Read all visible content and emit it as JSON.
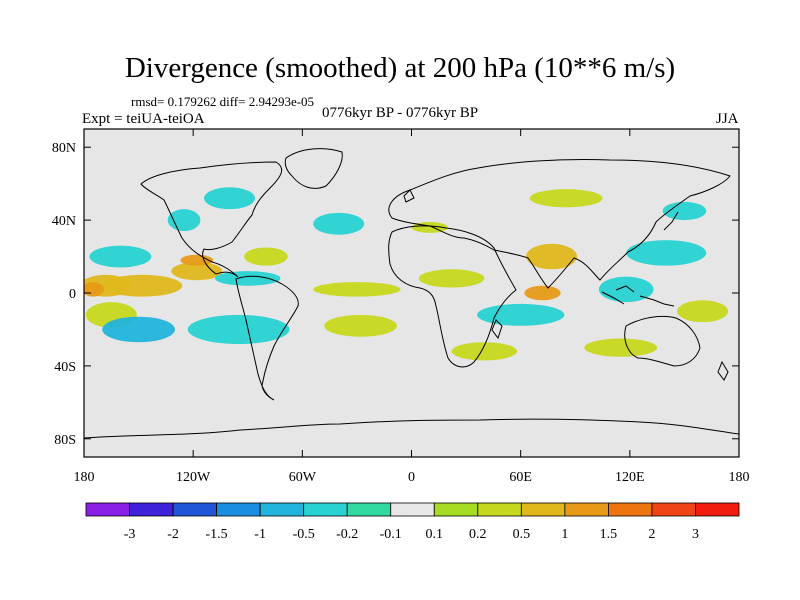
{
  "chart_data": {
    "type": "heatmap",
    "title": "Divergence (smoothed) at 200 hPa (10**6 m/s)",
    "stats": "rmsd= 0.179262  diff= 2.94293e-05",
    "experiment": "Expt = teiUA-teiOA",
    "period": "0776kyr BP - 0776kyr BP",
    "season": "JJA",
    "x_range": [
      -180,
      180
    ],
    "y_range": [
      -90,
      90
    ],
    "x_ticks": [
      {
        "value": -180,
        "label": "180"
      },
      {
        "value": -120,
        "label": "120W"
      },
      {
        "value": -60,
        "label": "60W"
      },
      {
        "value": 0,
        "label": "0"
      },
      {
        "value": 60,
        "label": "60E"
      },
      {
        "value": 120,
        "label": "120E"
      },
      {
        "value": 180,
        "label": "180"
      }
    ],
    "y_ticks": [
      {
        "value": 80,
        "label": "80N"
      },
      {
        "value": 40,
        "label": "40N"
      },
      {
        "value": 0,
        "label": "0"
      },
      {
        "value": -40,
        "label": "40S"
      },
      {
        "value": -80,
        "label": "80S"
      }
    ],
    "colorbar": {
      "levels": [
        "-3",
        "-2",
        "-1.5",
        "-1",
        "-0.5",
        "-0.2",
        "-0.1",
        "0.1",
        "0.2",
        "0.5",
        "1",
        "1.5",
        "2",
        "3"
      ],
      "colors": [
        "#8a1fe6",
        "#3d22d9",
        "#1f55d6",
        "#1a8fe0",
        "#22b4dc",
        "#28d2d2",
        "#30d9a0",
        "#e8e8e8",
        "#a8dc22",
        "#c6d81e",
        "#e0b81c",
        "#e69a18",
        "#ee7410",
        "#f04416",
        "#f01c10"
      ]
    },
    "regions": [
      {
        "lon": -168,
        "lat": 4,
        "rx": 14,
        "ry": 6,
        "level": 10
      },
      {
        "lon": -148,
        "lat": 4,
        "rx": 22,
        "ry": 6,
        "level": 10
      },
      {
        "lon": -118,
        "lat": 12,
        "rx": 14,
        "ry": 5,
        "level": 10
      },
      {
        "lon": -118,
        "lat": 18,
        "rx": 9,
        "ry": 3,
        "level": 11
      },
      {
        "lon": -175,
        "lat": 2,
        "rx": 6,
        "ry": 4,
        "level": 11
      },
      {
        "lon": -160,
        "lat": 20,
        "rx": 17,
        "ry": 6,
        "level": 5
      },
      {
        "lon": -125,
        "lat": 40,
        "rx": 9,
        "ry": 6,
        "level": 5
      },
      {
        "lon": -165,
        "lat": -12,
        "rx": 14,
        "ry": 7,
        "level": 9
      },
      {
        "lon": -150,
        "lat": -20,
        "rx": 20,
        "ry": 7,
        "level": 4
      },
      {
        "lon": -95,
        "lat": -20,
        "rx": 28,
        "ry": 8,
        "level": 5
      },
      {
        "lon": -90,
        "lat": 8,
        "rx": 18,
        "ry": 4,
        "level": 5
      },
      {
        "lon": -80,
        "lat": 20,
        "rx": 12,
        "ry": 5,
        "level": 9
      },
      {
        "lon": -30,
        "lat": 2,
        "rx": 24,
        "ry": 4,
        "level": 9
      },
      {
        "lon": -28,
        "lat": -18,
        "rx": 20,
        "ry": 6,
        "level": 9
      },
      {
        "lon": -40,
        "lat": 38,
        "rx": 14,
        "ry": 6,
        "level": 5
      },
      {
        "lon": -100,
        "lat": 52,
        "rx": 14,
        "ry": 6,
        "level": 5
      },
      {
        "lon": 22,
        "lat": 8,
        "rx": 18,
        "ry": 5,
        "level": 9
      },
      {
        "lon": 10,
        "lat": 36,
        "rx": 10,
        "ry": 3,
        "level": 9
      },
      {
        "lon": 60,
        "lat": -12,
        "rx": 24,
        "ry": 6,
        "level": 5
      },
      {
        "lon": 40,
        "lat": -32,
        "rx": 18,
        "ry": 5,
        "level": 9
      },
      {
        "lon": 77,
        "lat": 20,
        "rx": 14,
        "ry": 7,
        "level": 10
      },
      {
        "lon": 72,
        "lat": 0,
        "rx": 10,
        "ry": 4,
        "level": 11
      },
      {
        "lon": 118,
        "lat": 2,
        "rx": 15,
        "ry": 7,
        "level": 5
      },
      {
        "lon": 140,
        "lat": 22,
        "rx": 22,
        "ry": 7,
        "level": 5
      },
      {
        "lon": 160,
        "lat": -10,
        "rx": 14,
        "ry": 6,
        "level": 9
      },
      {
        "lon": 150,
        "lat": 45,
        "rx": 12,
        "ry": 5,
        "level": 5
      },
      {
        "lon": 115,
        "lat": -30,
        "rx": 20,
        "ry": 5,
        "level": 9
      },
      {
        "lon": 85,
        "lat": 52,
        "rx": 20,
        "ry": 5,
        "level": 9
      }
    ]
  }
}
